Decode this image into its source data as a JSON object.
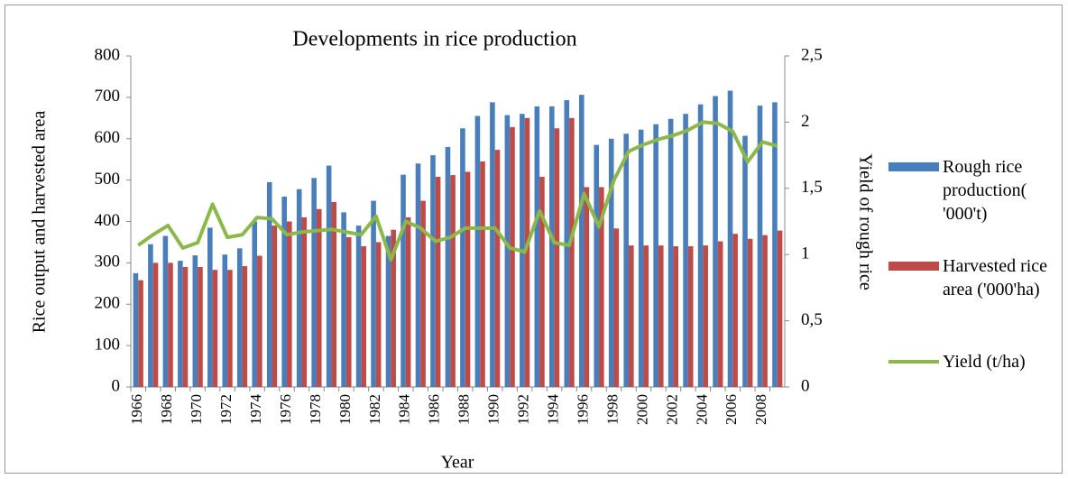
{
  "chart_data": {
    "type": "bar-line",
    "title": "Developments in rice production",
    "x_label": "Year",
    "y_label": "Rice output and harvested area",
    "y2_label": "Yield of rough rice",
    "legend": "right",
    "grid": false,
    "categories": [
      "1966",
      null,
      "1968",
      null,
      "1970",
      null,
      "1972",
      null,
      "1974",
      null,
      "1976",
      null,
      "1978",
      null,
      "1980",
      null,
      "1982",
      null,
      "1984",
      null,
      "1986",
      null,
      "1988",
      null,
      "1990",
      null,
      "1992",
      null,
      "1994",
      null,
      "1996",
      null,
      "1998",
      null,
      "2000",
      null,
      "2002",
      null,
      "2004",
      null,
      "2006",
      null,
      "2008",
      null
    ],
    "ylim": [
      0,
      800
    ],
    "yticks": [
      0,
      100,
      200,
      300,
      400,
      500,
      600,
      700,
      800
    ],
    "y2lim": [
      0,
      2.5
    ],
    "y2ticks": [
      0,
      {
        "value": 0.5,
        "label": "0,5"
      },
      1,
      {
        "value": 1.5,
        "label": "1,5"
      },
      2,
      {
        "value": 2.5,
        "label": "2,5"
      }
    ],
    "series": [
      {
        "name": "Rough rice production( '000't)",
        "color": "#4a7ebb",
        "kind": "bar",
        "values": [
          275,
          345,
          365,
          305,
          318,
          385,
          320,
          335,
          400,
          495,
          460,
          478,
          505,
          535,
          422,
          390,
          450,
          365,
          513,
          540,
          560,
          580,
          625,
          655,
          688,
          657,
          660,
          678,
          678,
          693,
          706,
          585,
          600,
          612,
          622,
          635,
          648,
          660,
          683,
          703,
          716,
          607,
          680,
          688
        ]
      },
      {
        "name": "Harvested rice area ('000'ha)",
        "color": "#be4b48",
        "kind": "bar",
        "values": [
          258,
          300,
          300,
          290,
          290,
          283,
          283,
          292,
          317,
          390,
          400,
          410,
          430,
          447,
          362,
          340,
          350,
          380,
          410,
          450,
          508,
          512,
          520,
          545,
          573,
          628,
          650,
          508,
          625,
          650,
          483,
          483,
          383,
          342,
          342,
          342,
          340,
          340,
          342,
          352,
          370,
          358,
          367,
          378
        ]
      },
      {
        "name": "Yield (t/ha)",
        "color": "#8cb84a",
        "kind": "line",
        "axis": "y2",
        "values": [
          1.07,
          1.15,
          1.22,
          1.05,
          1.09,
          1.38,
          1.13,
          1.15,
          1.28,
          1.27,
          1.15,
          1.17,
          1.18,
          1.19,
          1.17,
          1.15,
          1.29,
          0.96,
          1.25,
          1.2,
          1.1,
          1.13,
          1.2,
          1.2,
          1.2,
          1.05,
          1.02,
          1.33,
          1.09,
          1.07,
          1.46,
          1.21,
          1.56,
          1.78,
          1.83,
          1.87,
          1.9,
          1.94,
          2.0,
          1.99,
          1.93,
          1.7,
          1.85,
          1.82
        ]
      }
    ]
  }
}
